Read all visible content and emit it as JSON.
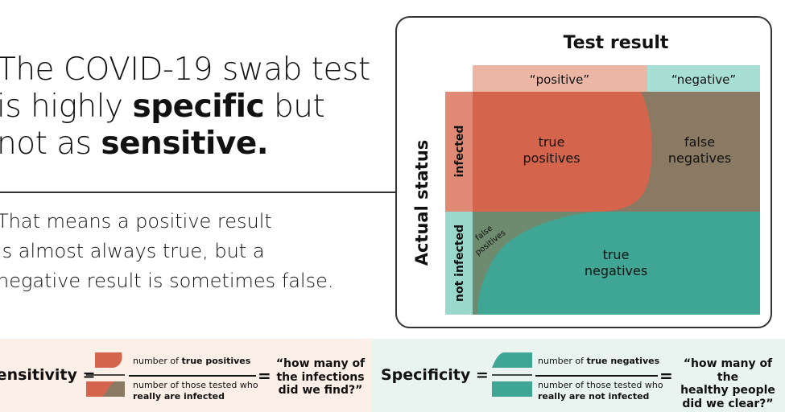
{
  "headline": {
    "line1": "The COVID-19 swab test",
    "line2_pre": "is highly ",
    "line2_bold": "specific",
    "line2_post": " but",
    "line3_pre": "not as ",
    "line3_bold": "sensitive."
  },
  "subtext": {
    "line1": "That means a positive result",
    "line2": "is almost always true, but a",
    "line3": "negative result is sometimes false."
  },
  "diagram": {
    "title": "Test result",
    "col_positive": "“positive”",
    "col_negative": "“negative”",
    "row_axis": "Actual status",
    "row_infected": "infected",
    "row_not_infected": "not infected",
    "tp_line1": "true",
    "tp_line2": "positives",
    "fn_line1": "false",
    "fn_line2": "negatives",
    "fp_line1": "false",
    "fp_line2": "positives",
    "tn_line1": "true",
    "tn_line2": "negatives"
  },
  "sensitivity": {
    "label": "Sensitivity =",
    "num_pre": "number of ",
    "num_bold": "true positives",
    "den_line1": "number of those tested who",
    "den_line2_bold": "really are infected",
    "equals": "=",
    "quote_line1": "“how many of",
    "quote_line2": "the infections",
    "quote_line3": "did we find?”"
  },
  "specificity": {
    "label": "Specificity =",
    "num_pre": "number of ",
    "num_bold": "true negatives",
    "den_line1": "number of those tested who",
    "den_line2_bold": "really are not infected",
    "equals": "=",
    "quote_line1": "“how many of the",
    "quote_line2": "healthy people",
    "quote_line3": "did we clear?”"
  },
  "colors": {
    "true_positive": "#d5644c",
    "false_negative": "#8a7a63",
    "true_negative": "#3fa595",
    "false_positive": "#6e8a6f",
    "positive_header": "#ecb6a5",
    "negative_header": "#a8dfd4",
    "infected_side": "#e08a75",
    "not_infected_side": "#9bd8cc"
  }
}
